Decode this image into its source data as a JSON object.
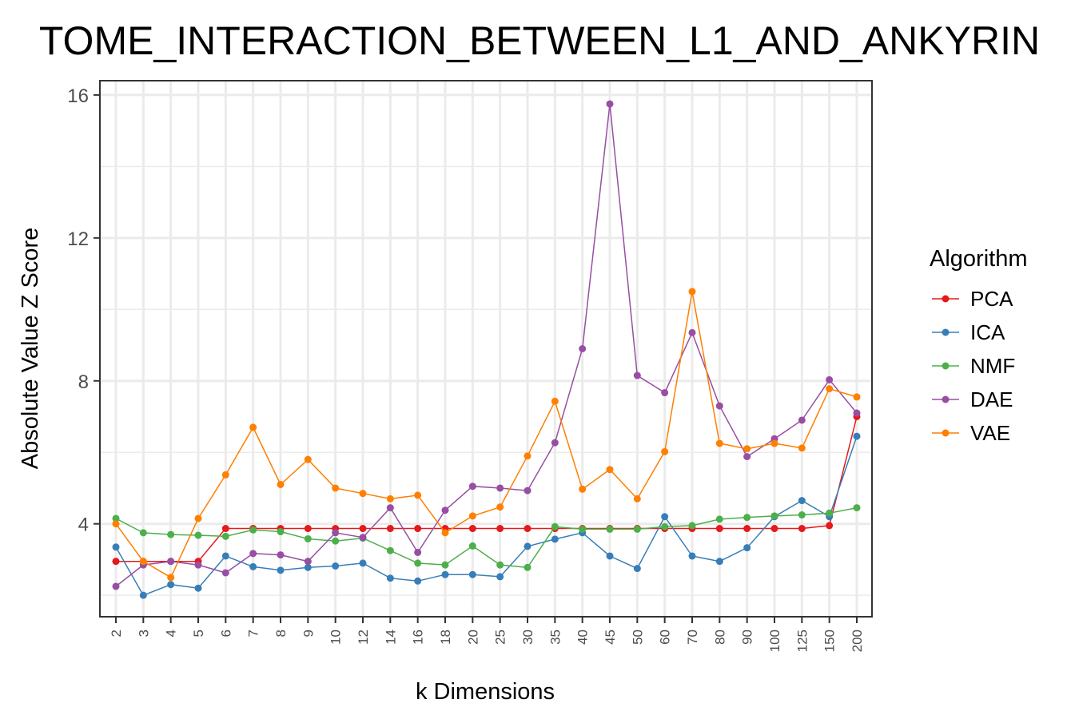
{
  "chart_data": {
    "type": "line",
    "title": "TOME_INTERACTION_BETWEEN_L1_AND_ANKYRIN",
    "xlabel": "k Dimensions",
    "ylabel": "Absolute Value Z Score",
    "categories": [
      "2",
      "3",
      "4",
      "5",
      "6",
      "7",
      "8",
      "9",
      "10",
      "12",
      "14",
      "16",
      "18",
      "20",
      "25",
      "30",
      "35",
      "40",
      "45",
      "50",
      "60",
      "70",
      "80",
      "90",
      "100",
      "125",
      "150",
      "200"
    ],
    "yticks": [
      4,
      8,
      12,
      16
    ],
    "ylim": [
      1.4,
      16.4
    ],
    "grid": true,
    "legend_title": "Algorithm",
    "legend_position": "right",
    "series": [
      {
        "name": "PCA",
        "color": "#E41A1C",
        "values": [
          2.95,
          2.95,
          2.95,
          2.95,
          3.87,
          3.87,
          3.87,
          3.87,
          3.87,
          3.87,
          3.87,
          3.87,
          3.87,
          3.87,
          3.87,
          3.87,
          3.87,
          3.87,
          3.87,
          3.87,
          3.87,
          3.87,
          3.87,
          3.87,
          3.87,
          3.87,
          3.95,
          7.0
        ]
      },
      {
        "name": "ICA",
        "color": "#377EB8",
        "values": [
          3.35,
          2.0,
          2.3,
          2.2,
          3.1,
          2.8,
          2.7,
          2.78,
          2.82,
          2.9,
          2.48,
          2.4,
          2.58,
          2.58,
          2.52,
          3.37,
          3.57,
          3.75,
          3.1,
          2.75,
          4.2,
          3.1,
          2.95,
          3.33,
          4.2,
          4.65,
          4.2,
          6.45
        ]
      },
      {
        "name": "NMF",
        "color": "#4DAF4A",
        "values": [
          4.15,
          3.75,
          3.7,
          3.68,
          3.65,
          3.83,
          3.78,
          3.58,
          3.52,
          3.6,
          3.25,
          2.9,
          2.85,
          3.38,
          2.85,
          2.78,
          3.92,
          3.85,
          3.85,
          3.85,
          3.92,
          3.95,
          4.13,
          4.18,
          4.22,
          4.25,
          4.3,
          4.45
        ]
      },
      {
        "name": "DAE",
        "color": "#984EA3",
        "values": [
          2.25,
          2.85,
          2.95,
          2.85,
          2.63,
          3.17,
          3.13,
          2.95,
          3.75,
          3.62,
          4.45,
          3.2,
          4.38,
          5.05,
          5.0,
          4.93,
          6.27,
          8.9,
          15.75,
          8.15,
          7.67,
          9.35,
          7.3,
          5.88,
          6.38,
          6.9,
          8.03,
          7.1
        ]
      },
      {
        "name": "VAE",
        "color": "#FF7F00",
        "values": [
          4.0,
          2.95,
          2.5,
          4.15,
          5.37,
          6.7,
          5.1,
          5.8,
          5.0,
          4.85,
          4.7,
          4.8,
          3.75,
          4.22,
          4.47,
          5.9,
          7.43,
          4.97,
          5.52,
          4.7,
          6.02,
          10.5,
          6.25,
          6.1,
          6.25,
          6.12,
          7.78,
          7.55
        ]
      }
    ]
  }
}
